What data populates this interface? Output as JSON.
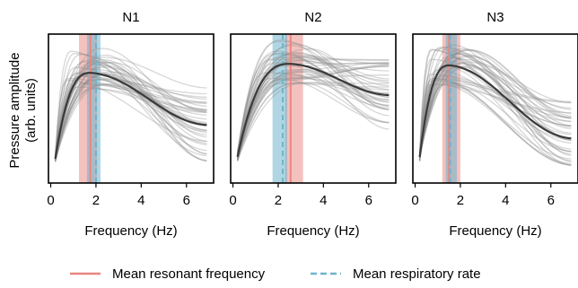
{
  "chart_data": {
    "type": "line",
    "ylabel_line1": "Pressure amplitude",
    "ylabel_line2": "(arb. units)",
    "xlim": [
      -0.1,
      7.2
    ],
    "xticks": [
      0,
      2,
      4,
      6
    ],
    "y_ticks_shown": false,
    "legend": {
      "position": "bottom",
      "entries": [
        {
          "label": "Mean resonant frequency",
          "color": "#e8867f",
          "style": "solid"
        },
        {
          "label": "Mean respiratory rate",
          "color": "#6fb5cc",
          "style": "dashed"
        }
      ]
    },
    "panels": [
      {
        "title": "N1",
        "xlabel": "Frequency  (Hz)",
        "mean_resonant_frequency": 1.75,
        "resonant_band": [
          1.25,
          2.05
        ],
        "mean_respiratory_rate": 2.0,
        "respiratory_band": [
          1.6,
          2.2
        ],
        "mean_curve": {
          "peak_hz": 1.75,
          "peak_amplitude": 0.74,
          "end_amplitude": 0.39
        },
        "individual_curves_count": 40
      },
      {
        "title": "N2",
        "xlabel": "Frequency  (Hz)",
        "mean_resonant_frequency": 2.55,
        "resonant_band": [
          2.3,
          3.1
        ],
        "mean_respiratory_rate": 2.2,
        "respiratory_band": [
          1.75,
          2.4
        ],
        "mean_curve": {
          "peak_hz": 2.5,
          "peak_amplitude": 0.8,
          "end_amplitude": 0.59
        },
        "individual_curves_count": 40
      },
      {
        "title": "N3",
        "xlabel": "Frequency  (Hz)",
        "mean_resonant_frequency": 1.5,
        "resonant_band": [
          1.2,
          2.0
        ],
        "mean_respiratory_rate": 1.55,
        "respiratory_band": [
          1.35,
          1.85
        ],
        "mean_curve": {
          "peak_hz": 1.5,
          "peak_amplitude": 0.79,
          "end_amplitude": 0.3
        },
        "individual_curves_count": 40
      }
    ]
  }
}
